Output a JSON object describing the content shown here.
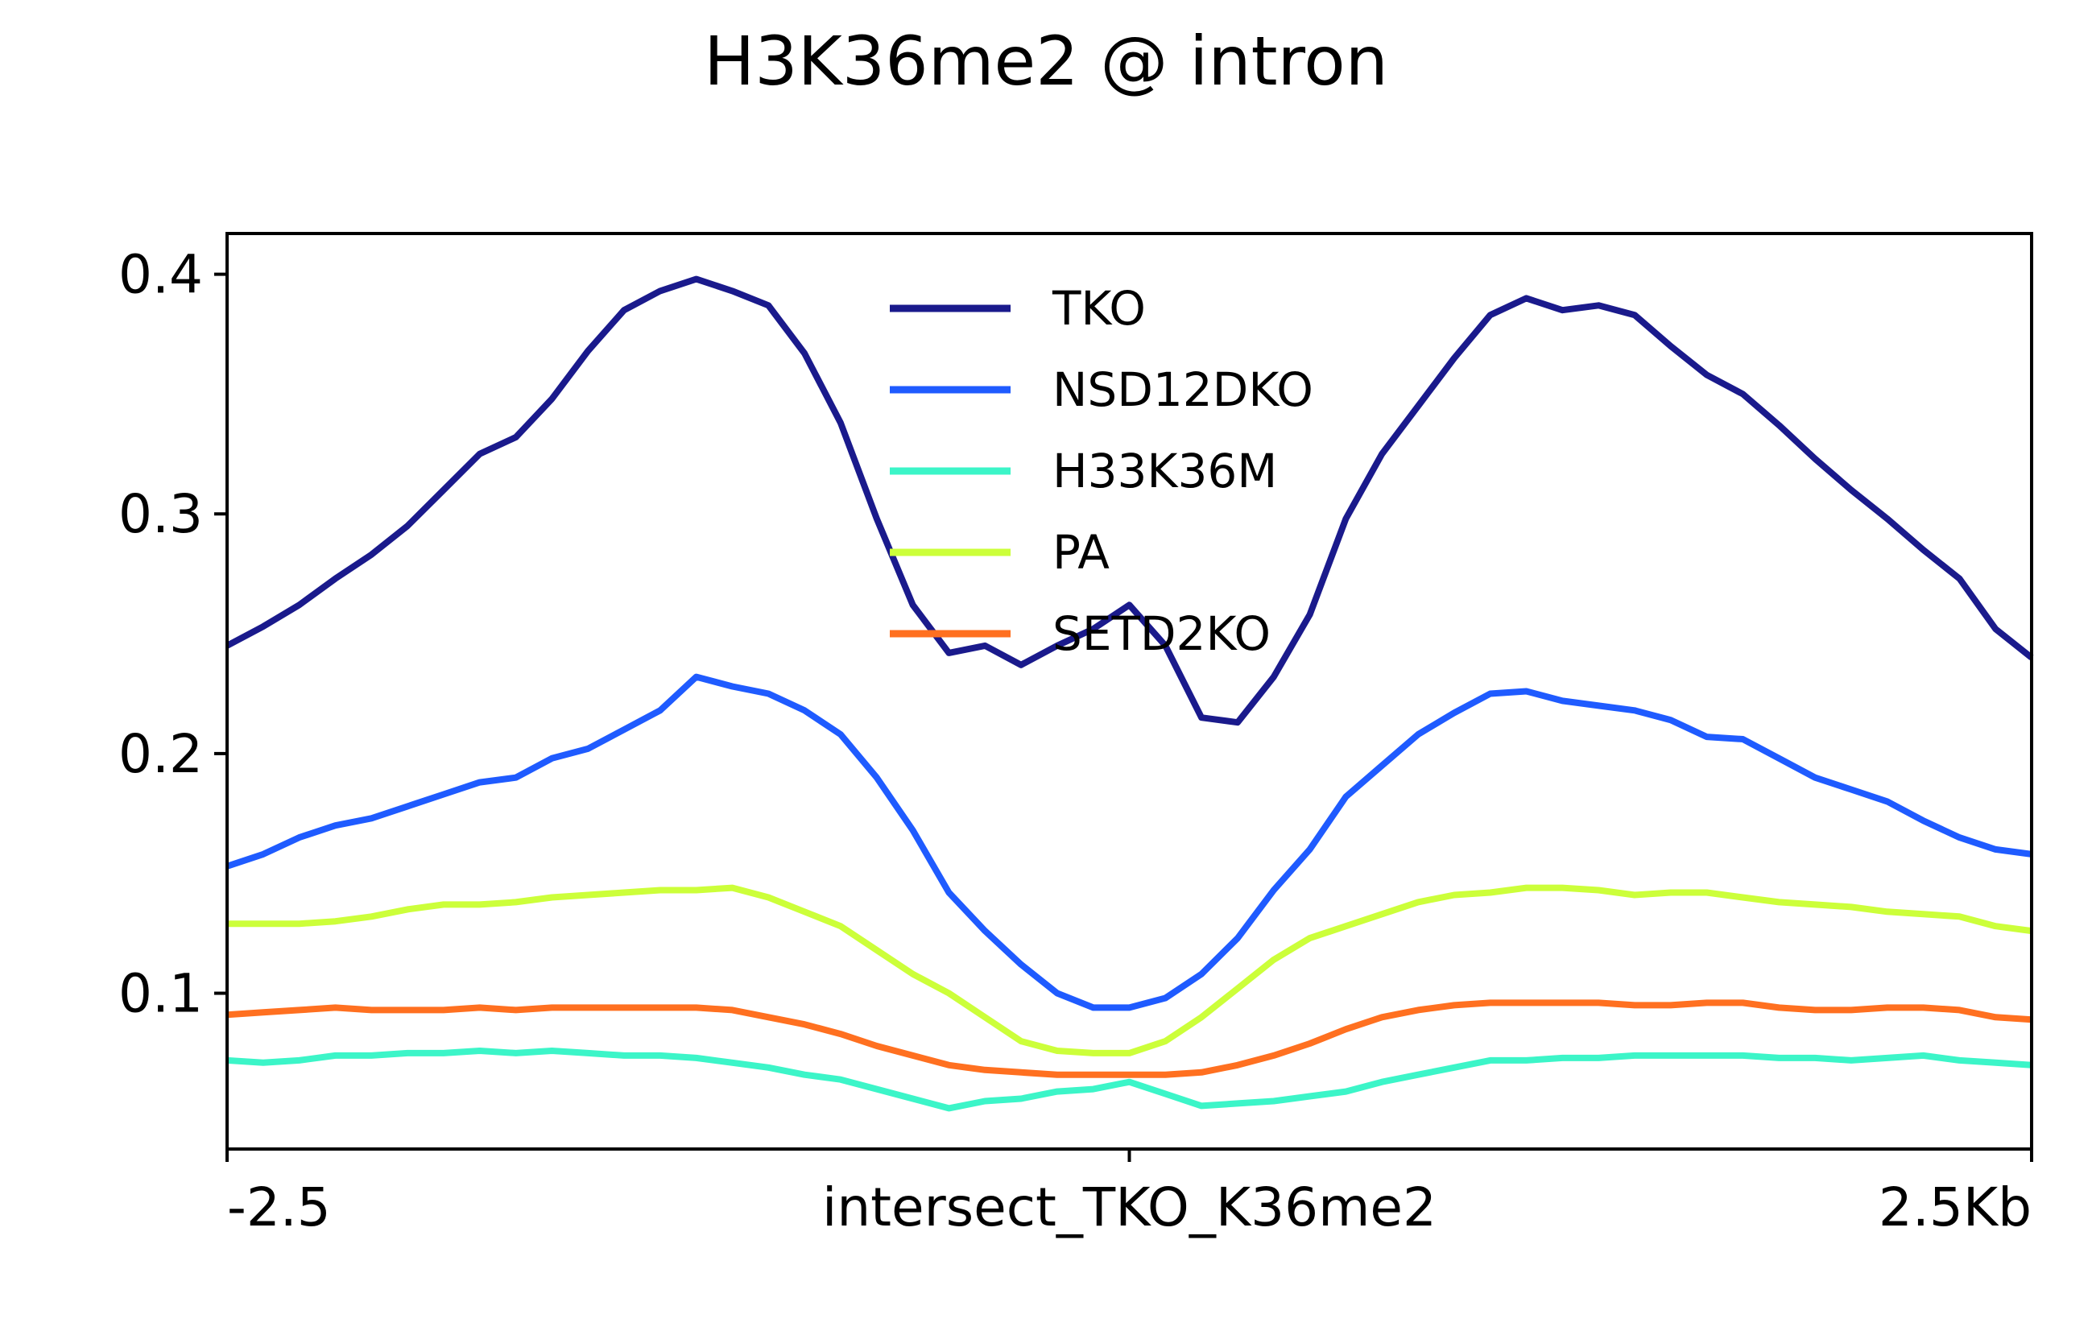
{
  "chart_data": {
    "type": "line",
    "title": "H3K36me2 @ intron",
    "xlabel": "",
    "ylabel": "",
    "xlim": [
      0,
      100
    ],
    "ylim": [
      0.035,
      0.417
    ],
    "x_ticks": [
      {
        "x": 0,
        "label": "-2.5"
      },
      {
        "x": 50,
        "label": "intersect_TKO_K36me2"
      },
      {
        "x": 100,
        "label": "2.5Kb"
      }
    ],
    "y_ticks": [
      {
        "y": 0.1,
        "label": "0.1"
      },
      {
        "y": 0.2,
        "label": "0.2"
      },
      {
        "y": 0.3,
        "label": "0.3"
      },
      {
        "y": 0.4,
        "label": "0.4"
      }
    ],
    "grid": false,
    "legend_position": "top-center",
    "series": [
      {
        "name": "TKO",
        "color": "#1a1a8c",
        "x": [
          0,
          2,
          4,
          6,
          8,
          10,
          12,
          14,
          16,
          18,
          20,
          22,
          24,
          26,
          28,
          30,
          32,
          34,
          36,
          38,
          40,
          42,
          44,
          46,
          48,
          50,
          52,
          54,
          56,
          58,
          60,
          62,
          64,
          66,
          68,
          70,
          72,
          74,
          76,
          78,
          80,
          82,
          84,
          86,
          88,
          90,
          92,
          94,
          96,
          98,
          100
        ],
        "y": [
          0.245,
          0.253,
          0.262,
          0.273,
          0.283,
          0.295,
          0.31,
          0.325,
          0.332,
          0.348,
          0.368,
          0.385,
          0.393,
          0.398,
          0.393,
          0.387,
          0.367,
          0.338,
          0.298,
          0.262,
          0.242,
          0.245,
          0.237,
          0.245,
          0.252,
          0.262,
          0.245,
          0.215,
          0.213,
          0.232,
          0.258,
          0.298,
          0.325,
          0.345,
          0.365,
          0.383,
          0.39,
          0.385,
          0.387,
          0.383,
          0.37,
          0.358,
          0.35,
          0.337,
          0.323,
          0.31,
          0.298,
          0.285,
          0.273,
          0.252,
          0.24
        ]
      },
      {
        "name": "NSD12DKO",
        "color": "#1f5bff",
        "x": [
          0,
          2,
          4,
          6,
          8,
          10,
          12,
          14,
          16,
          18,
          20,
          22,
          24,
          26,
          28,
          30,
          32,
          34,
          36,
          38,
          40,
          42,
          44,
          46,
          48,
          50,
          52,
          54,
          56,
          58,
          60,
          62,
          64,
          66,
          68,
          70,
          72,
          74,
          76,
          78,
          80,
          82,
          84,
          86,
          88,
          90,
          92,
          94,
          96,
          98,
          100
        ],
        "y": [
          0.153,
          0.158,
          0.165,
          0.17,
          0.173,
          0.178,
          0.183,
          0.188,
          0.19,
          0.198,
          0.202,
          0.21,
          0.218,
          0.232,
          0.228,
          0.225,
          0.218,
          0.208,
          0.19,
          0.168,
          0.142,
          0.126,
          0.112,
          0.1,
          0.094,
          0.094,
          0.098,
          0.108,
          0.123,
          0.143,
          0.16,
          0.182,
          0.195,
          0.208,
          0.217,
          0.225,
          0.226,
          0.222,
          0.22,
          0.218,
          0.214,
          0.207,
          0.206,
          0.198,
          0.19,
          0.185,
          0.18,
          0.172,
          0.165,
          0.16,
          0.158
        ]
      },
      {
        "name": "H33K36M",
        "color": "#3cf5c8",
        "x": [
          0,
          2,
          4,
          6,
          8,
          10,
          12,
          14,
          16,
          18,
          20,
          22,
          24,
          26,
          28,
          30,
          32,
          34,
          36,
          38,
          40,
          42,
          44,
          46,
          48,
          50,
          52,
          54,
          56,
          58,
          60,
          62,
          64,
          66,
          68,
          70,
          72,
          74,
          76,
          78,
          80,
          82,
          84,
          86,
          88,
          90,
          92,
          94,
          96,
          98,
          100
        ],
        "y": [
          0.072,
          0.071,
          0.072,
          0.074,
          0.074,
          0.075,
          0.075,
          0.076,
          0.075,
          0.076,
          0.075,
          0.074,
          0.074,
          0.073,
          0.071,
          0.069,
          0.066,
          0.064,
          0.06,
          0.056,
          0.052,
          0.055,
          0.056,
          0.059,
          0.06,
          0.063,
          0.058,
          0.053,
          0.054,
          0.055,
          0.057,
          0.059,
          0.063,
          0.066,
          0.069,
          0.072,
          0.072,
          0.073,
          0.073,
          0.074,
          0.074,
          0.074,
          0.074,
          0.073,
          0.073,
          0.072,
          0.073,
          0.074,
          0.072,
          0.071,
          0.07
        ]
      },
      {
        "name": "PA",
        "color": "#ccff3a",
        "x": [
          0,
          2,
          4,
          6,
          8,
          10,
          12,
          14,
          16,
          18,
          20,
          22,
          24,
          26,
          28,
          30,
          32,
          34,
          36,
          38,
          40,
          42,
          44,
          46,
          48,
          50,
          52,
          54,
          56,
          58,
          60,
          62,
          64,
          66,
          68,
          70,
          72,
          74,
          76,
          78,
          80,
          82,
          84,
          86,
          88,
          90,
          92,
          94,
          96,
          98,
          100
        ],
        "y": [
          0.129,
          0.129,
          0.129,
          0.13,
          0.132,
          0.135,
          0.137,
          0.137,
          0.138,
          0.14,
          0.141,
          0.142,
          0.143,
          0.143,
          0.144,
          0.14,
          0.134,
          0.128,
          0.118,
          0.108,
          0.1,
          0.09,
          0.08,
          0.076,
          0.075,
          0.075,
          0.08,
          0.09,
          0.102,
          0.114,
          0.123,
          0.128,
          0.133,
          0.138,
          0.141,
          0.142,
          0.144,
          0.144,
          0.143,
          0.141,
          0.142,
          0.142,
          0.14,
          0.138,
          0.137,
          0.136,
          0.134,
          0.133,
          0.132,
          0.128,
          0.126
        ]
      },
      {
        "name": "SETD2KO",
        "color": "#ff7020",
        "x": [
          0,
          2,
          4,
          6,
          8,
          10,
          12,
          14,
          16,
          18,
          20,
          22,
          24,
          26,
          28,
          30,
          32,
          34,
          36,
          38,
          40,
          42,
          44,
          46,
          48,
          50,
          52,
          54,
          56,
          58,
          60,
          62,
          64,
          66,
          68,
          70,
          72,
          74,
          76,
          78,
          80,
          82,
          84,
          86,
          88,
          90,
          92,
          94,
          96,
          98,
          100
        ],
        "y": [
          0.091,
          0.092,
          0.093,
          0.094,
          0.093,
          0.093,
          0.093,
          0.094,
          0.093,
          0.094,
          0.094,
          0.094,
          0.094,
          0.094,
          0.093,
          0.09,
          0.087,
          0.083,
          0.078,
          0.074,
          0.07,
          0.068,
          0.067,
          0.066,
          0.066,
          0.066,
          0.066,
          0.067,
          0.07,
          0.074,
          0.079,
          0.085,
          0.09,
          0.093,
          0.095,
          0.096,
          0.096,
          0.096,
          0.096,
          0.095,
          0.095,
          0.096,
          0.096,
          0.094,
          0.093,
          0.093,
          0.094,
          0.094,
          0.093,
          0.09,
          0.089
        ]
      }
    ]
  }
}
